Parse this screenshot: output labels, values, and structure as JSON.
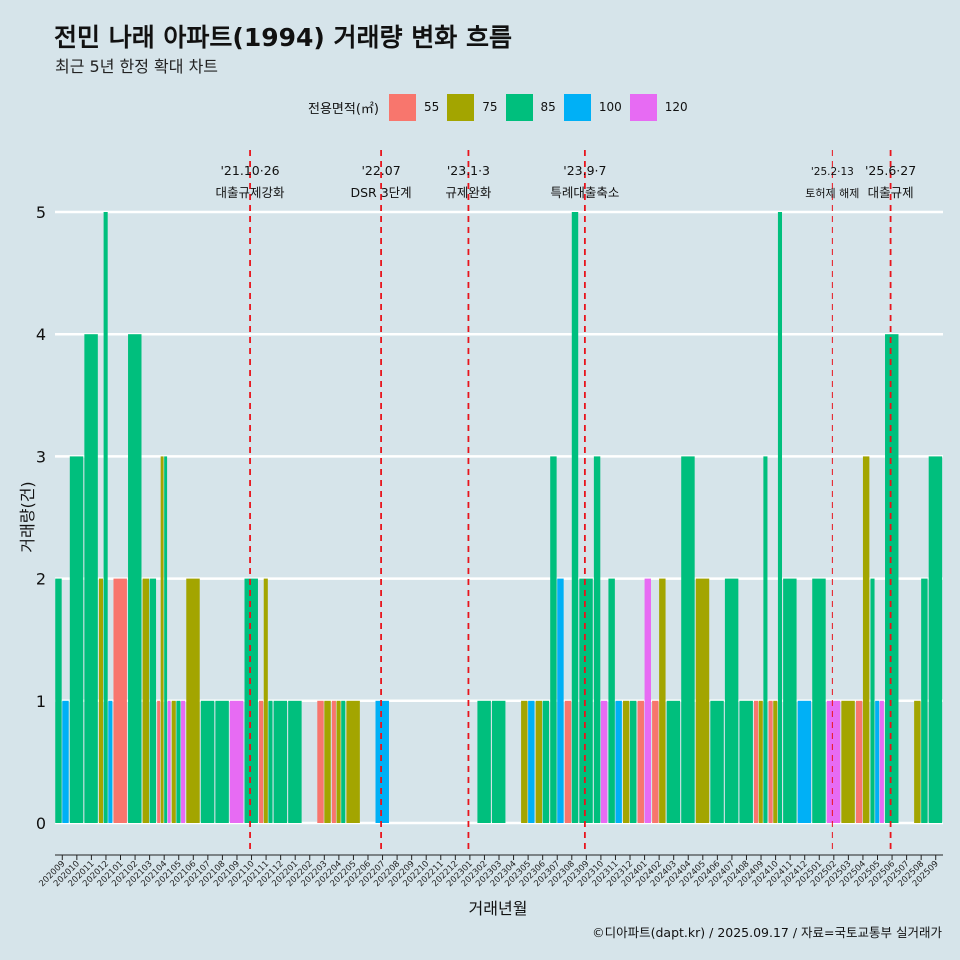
{
  "title": "전민 나래 아파트(1994) 거래량 변화 흐름",
  "subtitle": "최근 5년 한정 확대 차트",
  "caption": "©디아파트(dapt.kr) / 2025.09.17 / 자료=국토교통부 실거래가",
  "colors": {
    "55": "#f8766d",
    "75": "#a3a500",
    "85": "#00bf7d",
    "100": "#00b0f6",
    "120": "#e76bf3",
    "event": "#e8141c"
  },
  "chart_data": {
    "type": "bar",
    "xlabel": "거래년월",
    "ylabel": "거래량(건)",
    "ylim": [
      0,
      5
    ],
    "yticks": [
      0,
      1,
      2,
      3,
      4,
      5
    ],
    "legend": {
      "title": "전용면적(㎡)",
      "entries": [
        "55",
        "75",
        "85",
        "100",
        "120"
      ],
      "placement": "top"
    },
    "categories": [
      "202009",
      "202010",
      "202011",
      "202012",
      "202101",
      "202102",
      "202103",
      "202104",
      "202105",
      "202106",
      "202107",
      "202108",
      "202109",
      "202110",
      "202111",
      "202112",
      "202201",
      "202202",
      "202203",
      "202204",
      "202205",
      "202206",
      "202207",
      "202208",
      "202209",
      "202210",
      "202211",
      "202212",
      "202301",
      "202302",
      "202303",
      "202304",
      "202305",
      "202306",
      "202307",
      "202308",
      "202309",
      "202310",
      "202311",
      "202312",
      "202401",
      "202402",
      "202403",
      "202404",
      "202405",
      "202406",
      "202407",
      "202408",
      "202409",
      "202410",
      "202411",
      "202412",
      "202501",
      "202502",
      "202503",
      "202504",
      "202505",
      "202506",
      "202507",
      "202508",
      "202509"
    ],
    "series": [
      {
        "name": "55",
        "values": [
          0,
          0,
          0,
          0,
          2,
          0,
          0,
          1,
          0,
          0,
          0,
          0,
          0,
          0,
          1,
          0,
          0,
          0,
          1,
          1,
          0,
          0,
          0,
          0,
          0,
          0,
          0,
          0,
          0,
          0,
          0,
          0,
          0,
          0,
          0,
          1,
          0,
          0,
          0,
          0,
          1,
          1,
          0,
          0,
          0,
          0,
          0,
          0,
          1,
          1,
          0,
          0,
          0,
          0,
          0,
          1,
          0,
          0,
          0,
          0,
          0
        ]
      },
      {
        "name": "75",
        "values": [
          0,
          0,
          0,
          2,
          0,
          0,
          2,
          3,
          1,
          2,
          0,
          0,
          0,
          0,
          2,
          0,
          0,
          0,
          1,
          1,
          1,
          0,
          0,
          0,
          0,
          0,
          0,
          0,
          0,
          0,
          0,
          0,
          1,
          1,
          0,
          0,
          0,
          0,
          0,
          1,
          0,
          2,
          0,
          0,
          2,
          0,
          0,
          0,
          1,
          1,
          0,
          0,
          0,
          0,
          1,
          3,
          0,
          0,
          0,
          1,
          0
        ]
      },
      {
        "name": "85",
        "values": [
          2,
          3,
          4,
          5,
          0,
          4,
          2,
          3,
          1,
          0,
          1,
          1,
          0,
          2,
          1,
          1,
          1,
          0,
          0,
          1,
          0,
          0,
          0,
          0,
          0,
          0,
          0,
          0,
          0,
          1,
          1,
          0,
          0,
          1,
          3,
          5,
          2,
          3,
          2,
          1,
          0,
          0,
          1,
          3,
          0,
          1,
          2,
          1,
          3,
          5,
          2,
          0,
          2,
          0,
          0,
          0,
          2,
          4,
          0,
          2,
          3
        ]
      },
      {
        "name": "100",
        "values": [
          1,
          0,
          0,
          1,
          0,
          0,
          0,
          0,
          0,
          0,
          0,
          0,
          0,
          0,
          0,
          0,
          0,
          0,
          0,
          0,
          0,
          0,
          1,
          0,
          0,
          0,
          0,
          0,
          0,
          0,
          0,
          0,
          1,
          0,
          2,
          0,
          0,
          0,
          1,
          0,
          0,
          0,
          0,
          0,
          0,
          0,
          0,
          0,
          0,
          0,
          0,
          1,
          0,
          0,
          0,
          0,
          1,
          0,
          0,
          0,
          0
        ]
      },
      {
        "name": "120",
        "values": [
          0,
          0,
          0,
          0,
          0,
          0,
          0,
          1,
          1,
          0,
          0,
          0,
          1,
          0,
          0,
          0,
          0,
          0,
          0,
          0,
          0,
          0,
          0,
          0,
          0,
          0,
          0,
          0,
          0,
          0,
          0,
          0,
          0,
          0,
          0,
          0,
          0,
          1,
          0,
          0,
          2,
          0,
          0,
          0,
          0,
          0,
          0,
          0,
          0,
          0,
          0,
          0,
          0,
          1,
          0,
          0,
          1,
          0,
          0,
          0,
          0
        ]
      }
    ],
    "events": [
      {
        "x": 13.4,
        "date": "'21.10·26",
        "label": "대출규제강화",
        "line": "thick"
      },
      {
        "x": 22.4,
        "date": "'22.07",
        "label": "DSR 3단계",
        "line": "thick"
      },
      {
        "x": 28.4,
        "date": "'23.1·3",
        "label": "규제완화",
        "line": "thick"
      },
      {
        "x": 36.4,
        "date": "'23.9·7",
        "label": "특례대출축소",
        "line": "thick"
      },
      {
        "x": 53.4,
        "date": "'25.2·13",
        "label": "토허제 해제",
        "line": "thin"
      },
      {
        "x": 57.4,
        "date": "'25.6·27",
        "label": "대출규제",
        "line": "thick"
      }
    ]
  }
}
